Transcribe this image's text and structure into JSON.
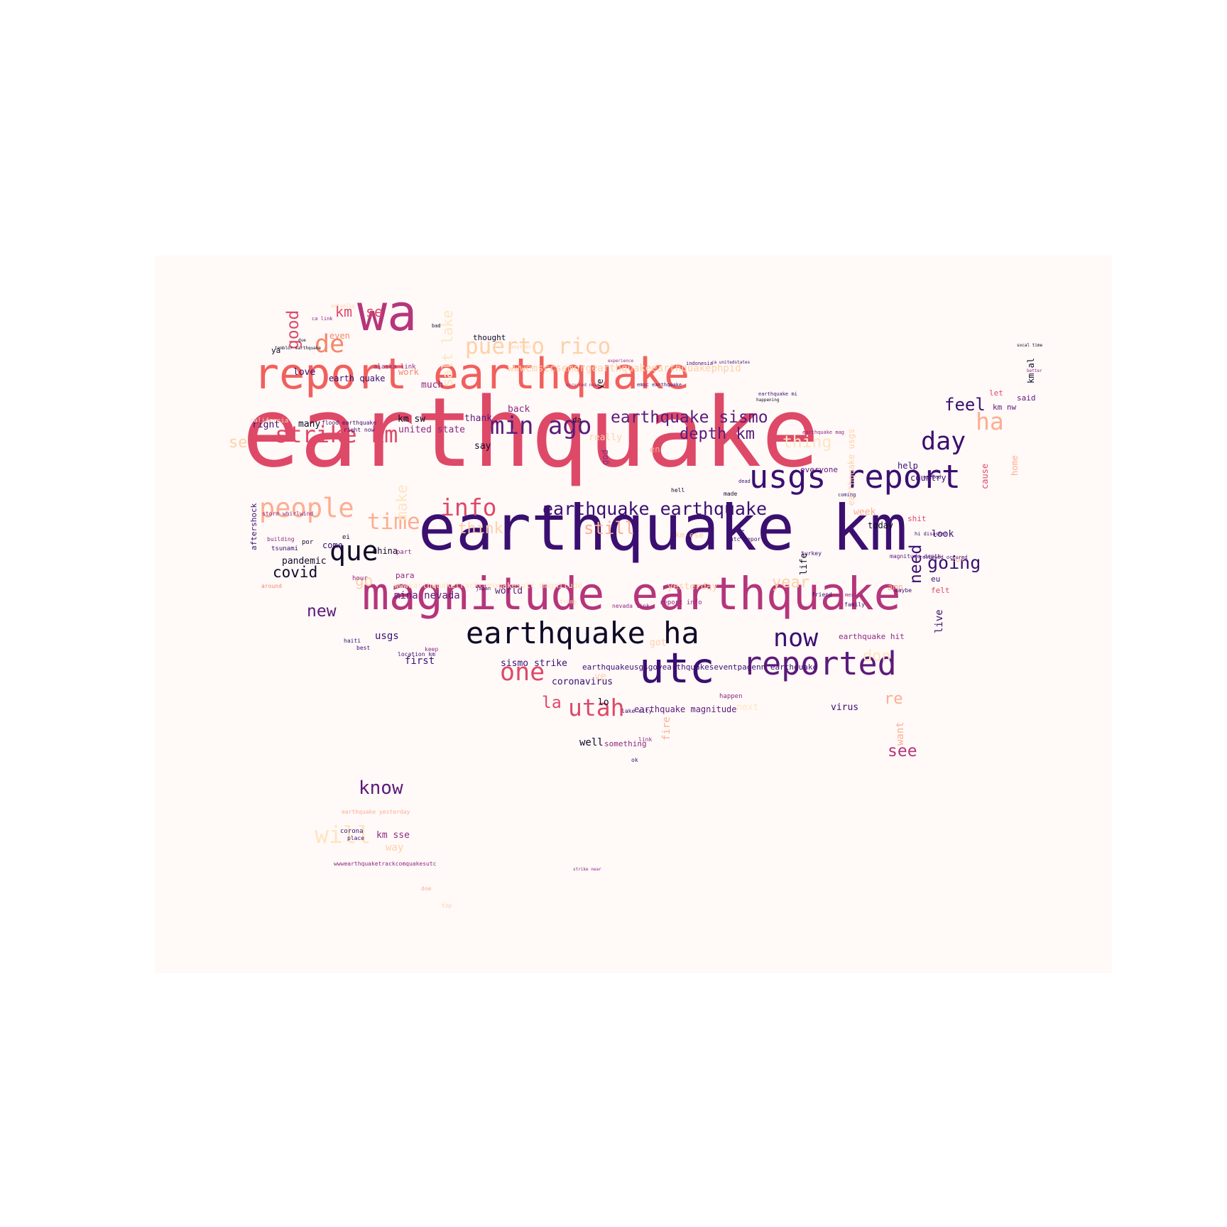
{
  "palette": {
    "black": "#0e0a26",
    "deep_purple": "#3b0f70",
    "purple": "#5c1a7a",
    "magenta": "#8c2981",
    "pink": "#b5367a",
    "rose": "#de4968",
    "coral": "#f1605d",
    "salmon": "#f4886a",
    "peach": "#fcae91",
    "light_peach": "#fdd1a7",
    "cream": "#fde6c0",
    "background": "#fff9f8"
  },
  "words": [
    {
      "text": "earthquake",
      "color": "rose"
    },
    {
      "text": "earthquake km",
      "color": "deep_purple"
    },
    {
      "text": "magnitude earthquake",
      "color": "pink"
    },
    {
      "text": "report earthquake",
      "color": "coral"
    },
    {
      "text": "usgs report",
      "color": "deep_purple"
    },
    {
      "text": "wa",
      "color": "pink"
    },
    {
      "text": "utc",
      "color": "deep_purple"
    },
    {
      "text": "earthquake ha",
      "color": "black"
    },
    {
      "text": "reported",
      "color": "purple"
    },
    {
      "text": "puerto rico",
      "color": "light_peach"
    },
    {
      "text": "min ago",
      "color": "purple"
    },
    {
      "text": "strike km",
      "color": "rose"
    },
    {
      "text": "people",
      "color": "peach"
    },
    {
      "text": "info",
      "color": "rose"
    },
    {
      "text": "earthquake earthquake",
      "color": "deep_purple"
    },
    {
      "text": "earthquake sismo",
      "color": "purple"
    },
    {
      "text": "depth km",
      "color": "purple"
    },
    {
      "text": "que",
      "color": "black"
    },
    {
      "text": "now",
      "color": "deep_purple"
    },
    {
      "text": "one",
      "color": "rose"
    },
    {
      "text": "utah",
      "color": "rose"
    },
    {
      "text": "day",
      "color": "deep_purple"
    },
    {
      "text": "de",
      "color": "salmon"
    },
    {
      "text": "time",
      "color": "peach"
    },
    {
      "text": "ha",
      "color": "peach"
    },
    {
      "text": "feel",
      "color": "deep_purple"
    },
    {
      "text": "will",
      "color": "cream"
    },
    {
      "text": "know",
      "color": "purple"
    },
    {
      "text": "going",
      "color": "deep_purple"
    },
    {
      "text": "covid",
      "color": "black"
    },
    {
      "text": "new",
      "color": "purple"
    },
    {
      "text": "see",
      "color": "pink"
    },
    {
      "text": "still",
      "color": "peach"
    },
    {
      "text": "think",
      "color": "light_peach"
    },
    {
      "text": "thing",
      "color": "cream"
    },
    {
      "text": "year",
      "color": "light_peach"
    },
    {
      "text": "don",
      "color": "cream"
    },
    {
      "text": "re",
      "color": "peach"
    },
    {
      "text": "la",
      "color": "rose"
    },
    {
      "text": "go",
      "color": "light_peach"
    },
    {
      "text": "se",
      "color": "light_peach"
    },
    {
      "text": "km",
      "color": "rose"
    },
    {
      "text": "se",
      "color": "rose"
    },
    {
      "text": "need",
      "color": "deep_purple"
    },
    {
      "text": "good",
      "color": "rose"
    },
    {
      "text": "make",
      "color": "cream"
    },
    {
      "text": "mina nevada",
      "color": "purple"
    },
    {
      "text": "sismo strike",
      "color": "deep_purple"
    },
    {
      "text": "coronavirus",
      "color": "deep_purple"
    },
    {
      "text": "earthquake magnitude",
      "color": "purple"
    },
    {
      "text": "km sw",
      "color": "black"
    },
    {
      "text": "united state",
      "color": "magenta"
    },
    {
      "text": "right",
      "color": "deep_purple"
    },
    {
      "text": "many",
      "color": "black"
    },
    {
      "text": "love",
      "color": "deep_purple"
    },
    {
      "text": "earth quake",
      "color": "deep_purple"
    },
    {
      "text": "work",
      "color": "salmon"
    },
    {
      "text": "much",
      "color": "magenta"
    },
    {
      "text": "thought",
      "color": "black"
    },
    {
      "text": "even",
      "color": "salmon"
    },
    {
      "text": "back",
      "color": "magenta"
    },
    {
      "text": "thank",
      "color": "purple"
    },
    {
      "text": "say",
      "color": "black"
    },
    {
      "text": "pandemic",
      "color": "black"
    },
    {
      "text": "china",
      "color": "black"
    },
    {
      "text": "come",
      "color": "deep_purple"
    },
    {
      "text": "world",
      "color": "purple"
    },
    {
      "text": "para",
      "color": "magenta"
    },
    {
      "text": "usgs",
      "color": "deep_purple"
    },
    {
      "text": "first",
      "color": "deep_purple"
    },
    {
      "text": "km sse",
      "color": "magenta"
    },
    {
      "text": "way",
      "color": "light_peach"
    },
    {
      "text": "well",
      "color": "black"
    },
    {
      "text": "something",
      "color": "magenta"
    },
    {
      "text": "lo",
      "color": "black"
    },
    {
      "text": "help",
      "color": "deep_purple"
    },
    {
      "text": "country",
      "color": "deep_purple"
    },
    {
      "text": "everyone",
      "color": "purple"
    },
    {
      "text": "week",
      "color": "peach"
    },
    {
      "text": "today",
      "color": "black"
    },
    {
      "text": "look",
      "color": "deep_purple"
    },
    {
      "text": "felt",
      "color": "rose"
    },
    {
      "text": "amp",
      "color": "peach"
    },
    {
      "text": "eu",
      "color": "deep_purple"
    },
    {
      "text": "virus",
      "color": "deep_purple"
    },
    {
      "text": "let",
      "color": "rose"
    },
    {
      "text": "said",
      "color": "purple"
    },
    {
      "text": "km nw",
      "color": "purple"
    },
    {
      "text": "yesterday",
      "color": "light_peach"
    },
    {
      "text": "earthquake hit",
      "color": "magenta"
    },
    {
      "text": "shit",
      "color": "rose"
    },
    {
      "text": "lot",
      "color": "peach"
    },
    {
      "text": "ya",
      "color": "black"
    },
    {
      "text": "really",
      "color": "light_peach"
    },
    {
      "text": "en",
      "color": "peach"
    },
    {
      "text": "da",
      "color": "black"
    },
    {
      "text": "aftershock",
      "color": "deep_purple"
    },
    {
      "text": "life",
      "color": "black"
    },
    {
      "text": "live",
      "color": "deep_purple"
    },
    {
      "text": "want",
      "color": "peach"
    },
    {
      "text": "fire",
      "color": "peach"
    },
    {
      "text": "cause",
      "color": "rose"
    },
    {
      "text": "home",
      "color": "peach"
    },
    {
      "text": "km al",
      "color": "black"
    },
    {
      "text": "earthquake usgs",
      "color": "light_peach"
    },
    {
      "text": "god",
      "color": "magenta"
    },
    {
      "text": "ye",
      "color": "black"
    },
    {
      "text": "salt lake",
      "color": "cream"
    },
    {
      "text": "wwwemsccsemorgearthquakeearthquakephpid",
      "color": "light_peach"
    },
    {
      "text": "wwwearthquaketrackcomquakesutc magnitude",
      "color": "cream"
    },
    {
      "text": "earthquakeusgsgovearthquakeseventpagenn earthquake",
      "color": "deep_purple"
    },
    {
      "text": "wwwearthquaketrackcomquakesutc",
      "color": "magenta"
    },
    {
      "text": "got",
      "color": "light_peach"
    },
    {
      "text": "ve",
      "color": "light_peach"
    },
    {
      "text": "next",
      "color": "cream"
    },
    {
      "text": "hour",
      "color": "magenta"
    },
    {
      "text": "ei",
      "color": "black"
    },
    {
      "text": "por",
      "color": "black"
    },
    {
      "text": "part",
      "color": "magenta"
    },
    {
      "text": "location km",
      "color": "deep_purple"
    },
    {
      "text": "alaska link",
      "color": "magenta"
    },
    {
      "text": "flood earthquake",
      "color": "deep_purple"
    },
    {
      "text": "right now",
      "color": "deep_purple"
    },
    {
      "text": "un",
      "color": "deep_purple"
    },
    {
      "text": "maybe",
      "color": "deep_purple"
    },
    {
      "text": "friend",
      "color": "deep_purple"
    },
    {
      "text": "family",
      "color": "deep_purple"
    },
    {
      "text": "made",
      "color": "black"
    },
    {
      "text": "nevada link",
      "color": "magenta"
    },
    {
      "text": "report info",
      "color": "magenta"
    },
    {
      "text": "km ese",
      "color": "light_peach"
    },
    {
      "text": "utc report",
      "color": "deep_purple"
    },
    {
      "text": "happen",
      "color": "magenta"
    },
    {
      "text": "california",
      "color": "light_peach"
    },
    {
      "text": "tsunami",
      "color": "deep_purple"
    },
    {
      "text": "building",
      "color": "magenta"
    },
    {
      "text": "storm whirlwind",
      "color": "magenta"
    },
    {
      "text": "haiti",
      "color": "deep_purple"
    },
    {
      "text": "best",
      "color": "deep_purple"
    },
    {
      "text": "earthquake yesterday",
      "color": "peach"
    },
    {
      "text": "corona",
      "color": "deep_purple"
    },
    {
      "text": "place",
      "color": "deep_purple"
    },
    {
      "text": "doe",
      "color": "peach"
    },
    {
      "text": "top",
      "color": "light_peach"
    },
    {
      "text": "strike near",
      "color": "magenta"
    },
    {
      "text": "link",
      "color": "magenta"
    },
    {
      "text": "ok",
      "color": "deep_purple"
    },
    {
      "text": "magnitude depth",
      "color": "purple"
    },
    {
      "text": "reviewed occured",
      "color": "deep_purple"
    },
    {
      "text": "hi disaster",
      "color": "deep_purple"
    },
    {
      "text": "needed",
      "color": "deep_purple"
    },
    {
      "text": "around",
      "color": "salmon"
    },
    {
      "text": "socal time",
      "color": "black"
    },
    {
      "text": "better",
      "color": "magenta"
    },
    {
      "text": "lake city",
      "color": "deep_purple"
    },
    {
      "text": "turkey",
      "color": "deep_purple"
    },
    {
      "text": "japan",
      "color": "deep_purple"
    },
    {
      "text": "mexico",
      "color": "magenta"
    },
    {
      "text": "indonesia",
      "color": "deep_purple"
    },
    {
      "text": "earthquake mi",
      "color": "deep_purple"
    },
    {
      "text": "happening",
      "color": "black"
    },
    {
      "text": "keep",
      "color": "magenta"
    },
    {
      "text": "trump",
      "color": "light_peach"
    },
    {
      "text": "another",
      "color": "light_peach"
    },
    {
      "text": "dead",
      "color": "deep_purple"
    },
    {
      "text": "coming",
      "color": "deep_purple"
    },
    {
      "text": "hell",
      "color": "black"
    },
    {
      "text": "bad",
      "color": "black"
    },
    {
      "text": "ca link",
      "color": "magenta"
    },
    {
      "text": "due",
      "color": "black"
    },
    {
      "text": "actually",
      "color": "light_peach"
    },
    {
      "text": "temblör earthquake",
      "color": "black"
    },
    {
      "text": "earthquake mag",
      "color": "magenta"
    },
    {
      "text": "emsc earthquake",
      "color": "deep_purple"
    },
    {
      "text": "occurred near",
      "color": "magenta"
    },
    {
      "text": "experience",
      "color": "magenta"
    },
    {
      "text": "ca unitedstates",
      "color": "deep_purple"
    }
  ]
}
